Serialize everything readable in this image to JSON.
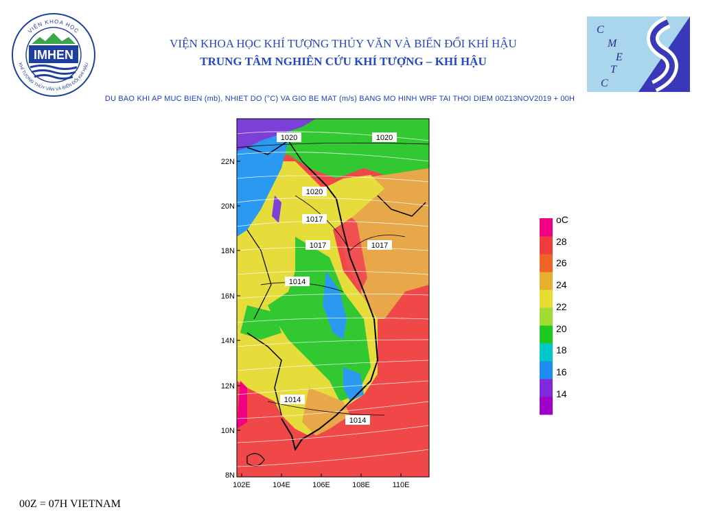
{
  "header": {
    "org_title": "VIỆN KHOA HỌC KHÍ TƯỢNG THỦY VĂN VÀ BIẾN ĐỔI KHÍ HẬU",
    "center_title": "TRUNG TÂM NGHIÊN CỨU KHÍ TƯỢNG – KHÍ HẬU",
    "subtitle": "DU BAO KHI AP MUC BIEN (mb), NHIET DO (°C) VA GIO BE MAT (m/s) BANG MO HINH WRF TAI THOI DIEM 00Z13NOV2019 + 00H"
  },
  "logos": {
    "imhen_text": "IMHEN",
    "imhen_ring_top": "VIỆN KHOA HỌC",
    "imhen_ring_bottom": "KHÍ TƯỢNG THỦY VĂN VÀ BIẾN ĐỔI KHÍ HẬU",
    "cmetc_letters": [
      "C",
      "M",
      "E",
      "T",
      "C"
    ]
  },
  "map": {
    "lat_labels": [
      "22N",
      "20N",
      "18N",
      "16N",
      "14N",
      "12N",
      "10N",
      "8N"
    ],
    "lon_labels": [
      "102E",
      "104E",
      "106E",
      "108E",
      "110E"
    ],
    "pressure_labels": [
      "1020",
      "1020",
      "1020",
      "1017",
      "1017",
      "1017",
      "1014",
      "1014",
      "1014"
    ]
  },
  "legend": {
    "unit": "oC",
    "ticks": [
      "28",
      "26",
      "24",
      "22",
      "20",
      "18",
      "16",
      "14"
    ],
    "colors": [
      "#a000c8",
      "#8228dc",
      "#1e8cf0",
      "#00c8c8",
      "#1ec81e",
      "#a0dc32",
      "#e6dc32",
      "#e6af2d",
      "#f06428",
      "#f03c3c",
      "#f00082"
    ]
  },
  "footer": {
    "note": "00Z = 07H VIETNAM"
  }
}
